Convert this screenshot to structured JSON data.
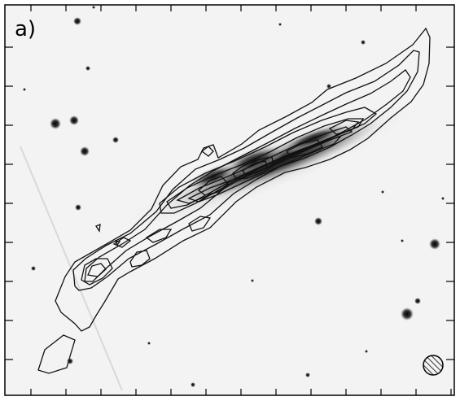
{
  "panel": {
    "label": "a)"
  },
  "colors": {
    "background": "#f4f4f4",
    "frame": "#000000",
    "contour": "#111111",
    "galaxy_core": "#111111",
    "stars": "#111111"
  },
  "icons": {
    "beam": "hatched-circle-icon"
  }
}
